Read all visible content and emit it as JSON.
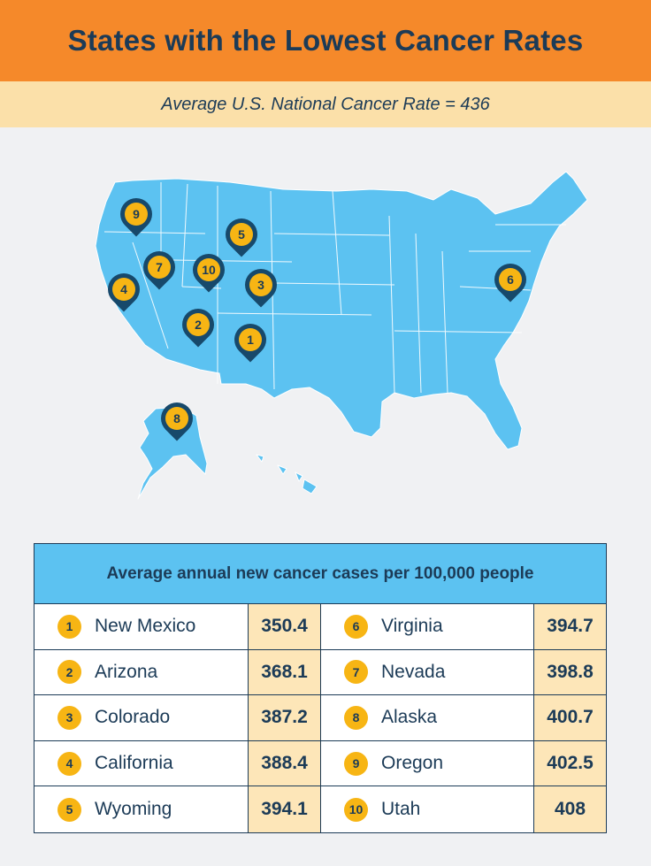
{
  "header": {
    "title": "States with the Lowest Cancer Rates"
  },
  "subheader": {
    "text": "Average U.S. National Cancer Rate = 436"
  },
  "map": {
    "fill_color": "#5cc2f1",
    "pin_color": "#17496b",
    "marker_color": "#f7b514",
    "pins": [
      {
        "rank": "9"
      },
      {
        "rank": "5"
      },
      {
        "rank": "7"
      },
      {
        "rank": "10"
      },
      {
        "rank": "4"
      },
      {
        "rank": "3"
      },
      {
        "rank": "2"
      },
      {
        "rank": "1"
      },
      {
        "rank": "6"
      },
      {
        "rank": "8"
      }
    ]
  },
  "table": {
    "title": "Average annual new cancer cases per 100,000 people",
    "left": [
      {
        "rank": "1",
        "state": "New Mexico",
        "rate": "350.4"
      },
      {
        "rank": "2",
        "state": "Arizona",
        "rate": "368.1"
      },
      {
        "rank": "3",
        "state": "Colorado",
        "rate": "387.2"
      },
      {
        "rank": "4",
        "state": "California",
        "rate": "388.4"
      },
      {
        "rank": "5",
        "state": "Wyoming",
        "rate": "394.1"
      }
    ],
    "right": [
      {
        "rank": "6",
        "state": "Virginia",
        "rate": "394.7"
      },
      {
        "rank": "7",
        "state": "Nevada",
        "rate": "398.8"
      },
      {
        "rank": "8",
        "state": "Alaska",
        "rate": "400.7"
      },
      {
        "rank": "9",
        "state": "Oregon",
        "rate": "402.5"
      },
      {
        "rank": "10",
        "state": "Utah",
        "rate": "408"
      }
    ]
  }
}
